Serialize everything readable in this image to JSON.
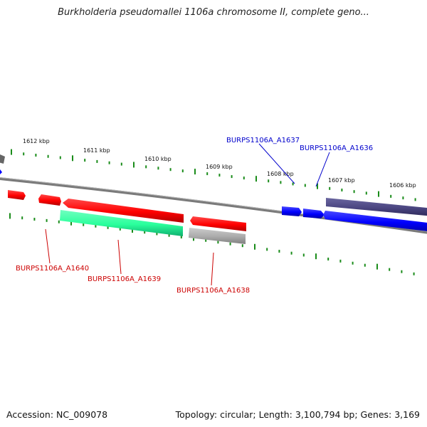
{
  "title": "Burkholderia pseudomallei 1106a chromosome II, complete geno...",
  "footer": {
    "accession": "Accession: NC_009078",
    "topology": "Topology: circular; Length: 3,100,794 bp; Genes: 3,169"
  },
  "colors": {
    "forward_gene": "#ff0000",
    "reverse_gene": "#0000ff",
    "cds_feature": "#2aff9c",
    "pseudo_feature": "#aaaaaa",
    "dark_feature": "#4a4580",
    "tick_marks": "#1a8c1a",
    "backbone": "#777777"
  },
  "scale": {
    "ticks": [
      {
        "label": "1612 kbp"
      },
      {
        "label": "1611 kbp"
      },
      {
        "label": "1610 kbp"
      },
      {
        "label": "1609 kbp"
      },
      {
        "label": "1608 kbp"
      },
      {
        "label": "1607 kbp"
      },
      {
        "label": "1606 kbp"
      }
    ]
  },
  "genes": [
    {
      "name": "BURPS1106A_A1637",
      "strand": "reverse"
    },
    {
      "name": "BURPS1106A_A1636",
      "strand": "reverse"
    },
    {
      "name": "BURPS1106A_A1640",
      "strand": "forward"
    },
    {
      "name": "BURPS1106A_A1639",
      "strand": "forward"
    },
    {
      "name": "BURPS1106A_A1638",
      "strand": "forward"
    }
  ]
}
